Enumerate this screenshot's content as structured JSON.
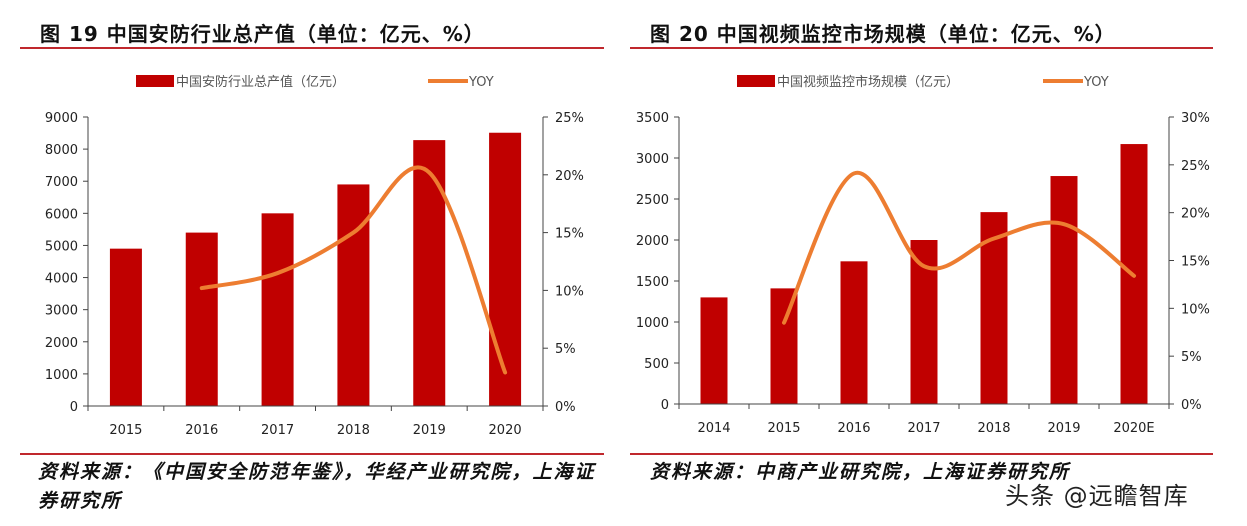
{
  "colors": {
    "bar": "#c00000",
    "line": "#ed7d31",
    "rule": "#c0282d",
    "axis": "#444444"
  },
  "chart_data": [
    {
      "type": "bar",
      "title": "图 19 中国安防行业总产值（单位：亿元、%）",
      "categories": [
        "2015",
        "2016",
        "2017",
        "2018",
        "2019",
        "2020"
      ],
      "series": [
        {
          "name": "中国安防行业总产值（亿元）",
          "type": "bar",
          "axis": "left",
          "values": [
            4900,
            5400,
            6000,
            6900,
            8280,
            8510
          ]
        },
        {
          "name": "YOY",
          "type": "line",
          "axis": "right",
          "values": [
            null,
            10.2,
            11.5,
            15.0,
            20.2,
            2.9
          ]
        }
      ],
      "y_left": {
        "min": 0,
        "max": 9000,
        "step": 1000,
        "ticks": [
          "0",
          "1000",
          "2000",
          "3000",
          "4000",
          "5000",
          "6000",
          "7000",
          "8000",
          "9000"
        ]
      },
      "y_right": {
        "min": 0,
        "max": 25,
        "step": 5,
        "ticks": [
          "0%",
          "5%",
          "10%",
          "15%",
          "20%",
          "25%"
        ]
      },
      "legend": {
        "position": "top",
        "bar_label": "中国安防行业总产值（亿元）",
        "line_label": "YOY"
      },
      "grid": false,
      "source": "资料来源：《中国安全防范年鉴》，华经产业研究院，上海证券研究所"
    },
    {
      "type": "bar",
      "title": "图 20 中国视频监控市场规模（单位：亿元、%）",
      "categories": [
        "2014",
        "2015",
        "2016",
        "2017",
        "2018",
        "2019",
        "2020E"
      ],
      "series": [
        {
          "name": "中国视频监控市场规模（亿元）",
          "type": "bar",
          "axis": "left",
          "values": [
            1300,
            1410,
            1740,
            2000,
            2340,
            2780,
            3170
          ]
        },
        {
          "name": "YOY",
          "type": "line",
          "axis": "right",
          "values": [
            null,
            8.5,
            24.1,
            14.4,
            17.3,
            18.8,
            13.4
          ]
        }
      ],
      "y_left": {
        "min": 0,
        "max": 3500,
        "step": 500,
        "ticks": [
          "0",
          "500",
          "1000",
          "1500",
          "2000",
          "2500",
          "3000",
          "3500"
        ]
      },
      "y_right": {
        "min": 0,
        "max": 30,
        "step": 5,
        "ticks": [
          "0%",
          "5%",
          "10%",
          "15%",
          "20%",
          "25%",
          "30%"
        ]
      },
      "legend": {
        "position": "top",
        "bar_label": "中国视频监控市场规模（亿元）",
        "line_label": "YOY"
      },
      "grid": false,
      "source": "资料来源：中商产业研究院，上海证券研究所"
    }
  ],
  "watermark": "头条 @远瞻智库"
}
